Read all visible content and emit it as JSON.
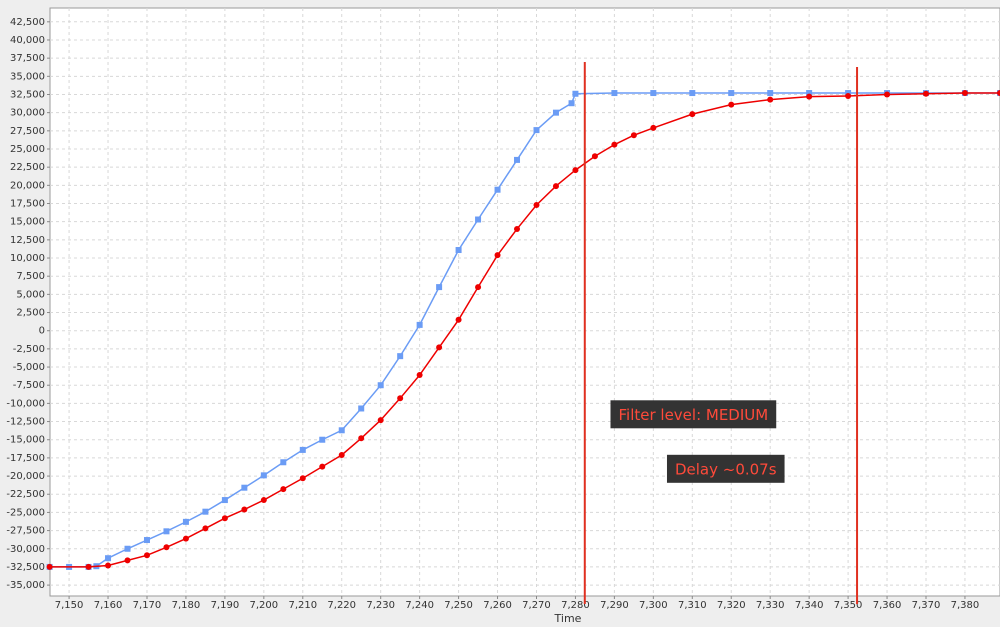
{
  "chart_data": {
    "type": "line",
    "x_label": "Time",
    "xlim": [
      7145.1,
      7389.0
    ],
    "xticks": [
      {
        "value": 7150,
        "label": "7,150"
      },
      {
        "value": 7160,
        "label": "7,160"
      },
      {
        "value": 7170,
        "label": "7,170"
      },
      {
        "value": 7180,
        "label": "7,180"
      },
      {
        "value": 7190,
        "label": "7,190"
      },
      {
        "value": 7200,
        "label": "7,200"
      },
      {
        "value": 7210,
        "label": "7,210"
      },
      {
        "value": 7220,
        "label": "7,220"
      },
      {
        "value": 7230,
        "label": "7,230"
      },
      {
        "value": 7240,
        "label": "7,240"
      },
      {
        "value": 7250,
        "label": "7,250"
      },
      {
        "value": 7260,
        "label": "7,260"
      },
      {
        "value": 7270,
        "label": "7,270"
      },
      {
        "value": 7280,
        "label": "7,280"
      },
      {
        "value": 7290,
        "label": "7,290"
      },
      {
        "value": 7300,
        "label": "7,300"
      },
      {
        "value": 7310,
        "label": "7,310"
      },
      {
        "value": 7320,
        "label": "7,320"
      },
      {
        "value": 7330,
        "label": "7,330"
      },
      {
        "value": 7340,
        "label": "7,340"
      },
      {
        "value": 7350,
        "label": "7,350"
      },
      {
        "value": 7360,
        "label": "7,360"
      },
      {
        "value": 7370,
        "label": "7,370"
      },
      {
        "value": 7380,
        "label": "7,380"
      }
    ],
    "ylim": [
      -36500,
      44400
    ],
    "yticks": [
      {
        "value": -35000,
        "label": "-35,000"
      },
      {
        "value": -32500,
        "label": "-32,500"
      },
      {
        "value": -30000,
        "label": "-30,000"
      },
      {
        "value": -27500,
        "label": "-27,500"
      },
      {
        "value": -25000,
        "label": "-25,000"
      },
      {
        "value": -22500,
        "label": "-22,500"
      },
      {
        "value": -20000,
        "label": "-20,000"
      },
      {
        "value": -17500,
        "label": "-17,500"
      },
      {
        "value": -15000,
        "label": "-15,000"
      },
      {
        "value": -12500,
        "label": "-12,500"
      },
      {
        "value": -10000,
        "label": "-10,000"
      },
      {
        "value": -7500,
        "label": "-7,500"
      },
      {
        "value": -5000,
        "label": "-5,000"
      },
      {
        "value": -2500,
        "label": "-2,500"
      },
      0,
      {
        "value": 2500,
        "label": "2,500"
      },
      {
        "value": 5000,
        "label": "5,000"
      },
      {
        "value": 7500,
        "label": "7,500"
      },
      {
        "value": 10000,
        "label": "10,000"
      },
      {
        "value": 12500,
        "label": "12,500"
      },
      {
        "value": 15000,
        "label": "15,000"
      },
      {
        "value": 17500,
        "label": "17,500"
      },
      {
        "value": 20000,
        "label": "20,000"
      },
      {
        "value": 22500,
        "label": "22,500"
      },
      {
        "value": 25000,
        "label": "25,000"
      },
      {
        "value": 27500,
        "label": "27,500"
      },
      {
        "value": 30000,
        "label": "30,000"
      },
      {
        "value": 32500,
        "label": "32,500"
      },
      {
        "value": 35000,
        "label": "35,000"
      },
      {
        "value": 37500,
        "label": "37,500"
      },
      {
        "value": 40000,
        "label": "40,000"
      },
      {
        "value": 42500,
        "label": "42,500"
      }
    ],
    "grid": true,
    "series": [
      {
        "color": "#6b9cf5",
        "marker": "square",
        "x": [
          7145,
          7150,
          7155,
          7157,
          7160,
          7165,
          7170,
          7175,
          7180,
          7185,
          7190,
          7195,
          7200,
          7205,
          7210,
          7215,
          7220,
          7225,
          7230,
          7235,
          7240,
          7245,
          7250,
          7255,
          7260,
          7265,
          7270,
          7275,
          7279,
          7280,
          7290,
          7300,
          7310,
          7320,
          7330,
          7340,
          7350,
          7360,
          7370,
          7380,
          7389
        ],
        "values": [
          -32500,
          -32500,
          -32500,
          -32400,
          -31300,
          -30000,
          -28800,
          -27600,
          -26300,
          -24900,
          -23300,
          -21600,
          -19900,
          -18100,
          -16400,
          -15000,
          -13700,
          -10700,
          -7500,
          -3500,
          800,
          6000,
          11100,
          15300,
          19400,
          23500,
          27600,
          30000,
          31300,
          32600,
          32700,
          32700,
          32700,
          32700,
          32700,
          32700,
          32700,
          32700,
          32700,
          32700,
          32700
        ]
      },
      {
        "color": "#ee0000",
        "marker": "circle",
        "x": [
          7145,
          7155,
          7160,
          7165,
          7170,
          7175,
          7180,
          7185,
          7190,
          7195,
          7200,
          7205,
          7210,
          7215,
          7220,
          7225,
          7230,
          7235,
          7240,
          7245,
          7250,
          7255,
          7260,
          7265,
          7270,
          7275,
          7280,
          7285,
          7290,
          7295,
          7300,
          7310,
          7320,
          7330,
          7340,
          7350,
          7360,
          7370,
          7380,
          7389
        ],
        "values": [
          -32500,
          -32500,
          -32300,
          -31600,
          -30900,
          -29800,
          -28600,
          -27200,
          -25800,
          -24600,
          -23300,
          -21800,
          -20300,
          -18700,
          -17100,
          -14800,
          -12300,
          -9300,
          -6100,
          -2300,
          1500,
          6000,
          10400,
          14000,
          17300,
          19900,
          22100,
          24000,
          25600,
          26900,
          27900,
          29800,
          31100,
          31800,
          32200,
          32300,
          32500,
          32600,
          32700,
          32700
        ]
      }
    ],
    "vlines": {
      "color": "#e03020",
      "x": [
        7282.4,
        7352.3
      ]
    },
    "annotations": [
      {
        "text": "Filter level: MEDIUM",
        "x": 7289,
        "y": -11500
      },
      {
        "text": "Delay ~0.07s",
        "x": 7303.5,
        "y": -19000
      }
    ]
  }
}
